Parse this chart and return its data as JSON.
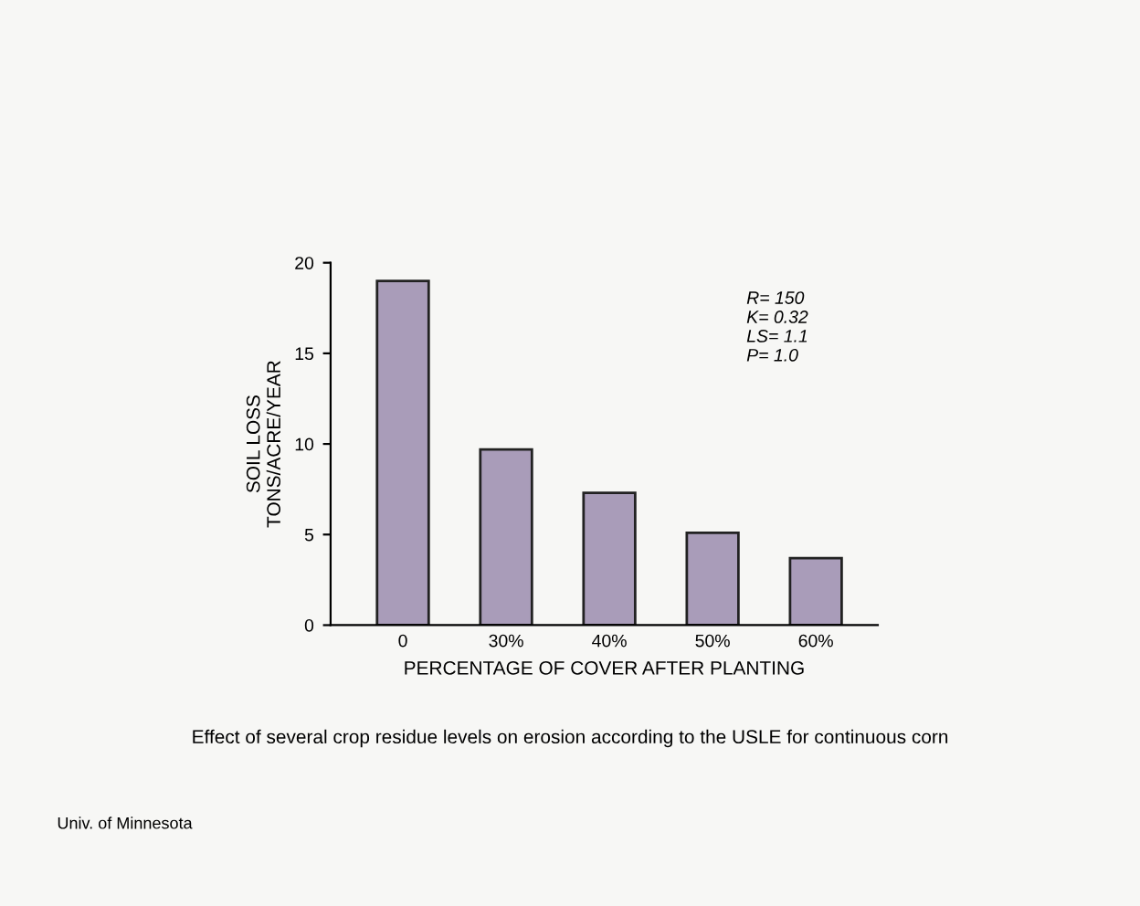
{
  "chart_data": {
    "type": "bar",
    "categories": [
      "0",
      "30%",
      "40%",
      "50%",
      "60%"
    ],
    "values": [
      19,
      9.7,
      7.3,
      5.1,
      3.7
    ],
    "color": "#a99cb9",
    "xlabel": "PERCENTAGE OF COVER AFTER PLANTING",
    "ylabel": "SOIL LOSS\nTONS/ACRE/YEAR",
    "ylim": [
      0,
      20
    ],
    "yticks": [
      0,
      5,
      10,
      15,
      20
    ],
    "grid": false,
    "annotations": [
      "R= 150\nK= 0.32\nLS= 1.1\nP= 1.0",
      "Effect of several crop residue levels on erosion according to the USLE for continuous corn",
      "Univ. of Minnesota"
    ]
  }
}
